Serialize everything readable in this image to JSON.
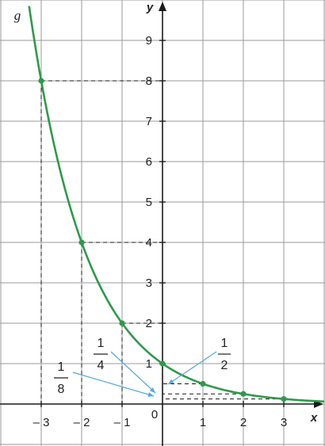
{
  "chart_data": {
    "type": "line",
    "function_label": "g",
    "xlabel": "x",
    "ylabel": "y",
    "xlim": [
      -4,
      4
    ],
    "ylim": [
      -0.5,
      10
    ],
    "grid": true,
    "x_ticks": [
      -3,
      -2,
      -1,
      1,
      2,
      3
    ],
    "x_tick_labels": [
      "– 3",
      "– 2",
      "– 1",
      "1",
      "2",
      "3"
    ],
    "y_ticks": [
      1,
      2,
      3,
      4,
      5,
      6,
      7,
      8,
      9
    ],
    "y_tick_labels": [
      "1",
      "2",
      "3",
      "4",
      "5",
      "6",
      "7",
      "8",
      "9"
    ],
    "origin_label": "0",
    "series": [
      {
        "function": "y = (1/2)^x",
        "points": [
          {
            "x": -3,
            "y": 8
          },
          {
            "x": -2,
            "y": 4
          },
          {
            "x": -1,
            "y": 2
          },
          {
            "x": 0,
            "y": 1
          },
          {
            "x": 1,
            "y": 0.5
          },
          {
            "x": 2,
            "y": 0.25
          },
          {
            "x": 3,
            "y": 0.125
          }
        ]
      }
    ],
    "annotations": [
      {
        "numerator": "1",
        "denominator": "2",
        "target": {
          "x": 1,
          "y": 0.5
        }
      },
      {
        "numerator": "1",
        "denominator": "4",
        "target": {
          "x": 2,
          "y": 0.25
        }
      },
      {
        "numerator": "1",
        "denominator": "8",
        "target": {
          "x": 3,
          "y": 0.125
        }
      }
    ],
    "colors": {
      "curve": "#2e9a4a",
      "callout": "#5aa8d8",
      "grid": "#9a9a9a",
      "axis": "#1a1a1a"
    }
  }
}
